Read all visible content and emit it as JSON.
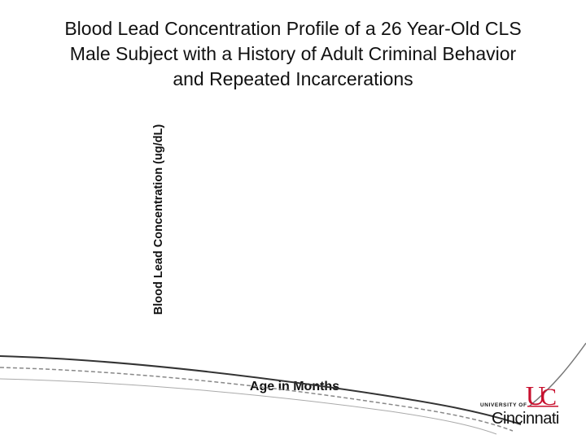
{
  "chart_data": {
    "type": "line",
    "title_lines": [
      "Blood Lead Concentration Profile of a 26 Year-Old CLS",
      "Male Subject with a History of Adult Criminal Behavior",
      "and Repeated Incarcerations"
    ],
    "ylabel": "Blood Lead Concentration (ug/dL)",
    "xlabel": "Age in Months",
    "series": [],
    "grid": false
  },
  "branding": {
    "logo_small": "UNIVERSITY OF",
    "logo_big": "Cincinnati",
    "accent": "#c8102e",
    "swoosh": "#333333"
  }
}
